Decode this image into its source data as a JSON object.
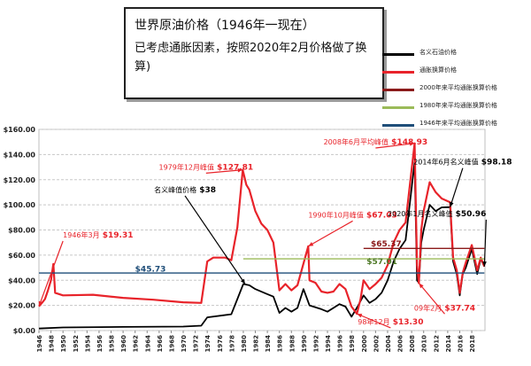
{
  "title_box": {
    "title": "世界原油价格（1946年一现在）",
    "subtitle": "已考虑通胀因素，按照2020年2月价格做了换算)"
  },
  "legend": [
    {
      "label": "名义石油价格",
      "color": "#000000"
    },
    {
      "label": "通胀换算价格",
      "color": "#e8232a"
    },
    {
      "label": "2000年来平均通胀换算价格",
      "color": "#8b1a1a"
    },
    {
      "label": "1980年来平均通胀换算价格",
      "color": "#9bbb59"
    },
    {
      "label": "1946年来平均通胀换算价格",
      "color": "#1f4e79"
    }
  ],
  "chart_data": {
    "type": "line",
    "ylim": [
      0,
      160
    ],
    "xlim": [
      1946,
      2020.2
    ],
    "y_ticks": [
      "$0.00",
      "$20.00",
      "$40.00",
      "$60.00",
      "$80.00",
      "$100.00",
      "$120.00",
      "$140.00",
      "$160.00"
    ],
    "x_ticks": [
      "1946",
      "1948",
      "1950",
      "1952",
      "1954",
      "1956",
      "1958",
      "1960",
      "1962",
      "1964",
      "1966",
      "1968",
      "1970",
      "1972",
      "1974",
      "1976",
      "1978",
      "1980",
      "1982",
      "1984",
      "1986",
      "1988",
      "1990",
      "1992",
      "1994",
      "1996",
      "1998",
      "2000",
      "2002",
      "2004",
      "2006",
      "2008",
      "2010",
      "2012",
      "2014",
      "2016",
      "2018"
    ],
    "grid": true,
    "series": [
      {
        "name": "名义石油价格",
        "color": "#000000",
        "points": [
          [
            1946,
            1.6
          ],
          [
            1950,
            2.5
          ],
          [
            1960,
            2.9
          ],
          [
            1970,
            3.2
          ],
          [
            1973,
            3.9
          ],
          [
            1974,
            10.5
          ],
          [
            1978,
            13
          ],
          [
            1979,
            25
          ],
          [
            1980,
            37
          ],
          [
            1981,
            36
          ],
          [
            1982,
            33
          ],
          [
            1984,
            29
          ],
          [
            1985,
            27
          ],
          [
            1986,
            14
          ],
          [
            1987,
            18
          ],
          [
            1988,
            15
          ],
          [
            1989,
            18
          ],
          [
            1990,
            33
          ],
          [
            1991,
            20
          ],
          [
            1993,
            17
          ],
          [
            1994,
            15
          ],
          [
            1996,
            21
          ],
          [
            1997,
            19
          ],
          [
            1998,
            11
          ],
          [
            1999,
            19
          ],
          [
            2000,
            28
          ],
          [
            2001,
            22
          ],
          [
            2002,
            25
          ],
          [
            2003,
            30
          ],
          [
            2004,
            40
          ],
          [
            2005,
            55
          ],
          [
            2006,
            65
          ],
          [
            2007,
            72
          ],
          [
            2008.5,
            134
          ],
          [
            2008.9,
            40
          ],
          [
            2009.2,
            38
          ],
          [
            2009.6,
            70
          ],
          [
            2010,
            80
          ],
          [
            2011,
            100
          ],
          [
            2012,
            95
          ],
          [
            2013,
            98
          ],
          [
            2014.4,
            98.18
          ],
          [
            2014.9,
            55
          ],
          [
            2015.5,
            45
          ],
          [
            2016,
            28
          ],
          [
            2016.5,
            45
          ],
          [
            2017,
            50
          ],
          [
            2018,
            65
          ],
          [
            2018.9,
            45
          ],
          [
            2019.5,
            57
          ],
          [
            2020.1,
            50.96
          ]
        ]
      },
      {
        "name": "通胀换算价格",
        "color": "#e8232a",
        "points": [
          [
            1946,
            19.31
          ],
          [
            1946.5,
            22
          ],
          [
            1947,
            25
          ],
          [
            1947.5,
            32
          ],
          [
            1948,
            40
          ],
          [
            1948.4,
            53
          ],
          [
            1948.7,
            30
          ],
          [
            1950,
            28
          ],
          [
            1955,
            28.5
          ],
          [
            1960,
            26
          ],
          [
            1965,
            24.5
          ],
          [
            1970,
            22.5
          ],
          [
            1973,
            22
          ],
          [
            1974,
            55
          ],
          [
            1975,
            58
          ],
          [
            1976,
            58
          ],
          [
            1977,
            58
          ],
          [
            1978,
            56
          ],
          [
            1979,
            82
          ],
          [
            1979.9,
            127.81
          ],
          [
            1980.5,
            116
          ],
          [
            1981,
            112
          ],
          [
            1982,
            95
          ],
          [
            1983,
            85
          ],
          [
            1984,
            80
          ],
          [
            1985,
            70
          ],
          [
            1986,
            32
          ],
          [
            1987,
            37
          ],
          [
            1988,
            32
          ],
          [
            1989,
            36
          ],
          [
            1990.8,
            67.03
          ],
          [
            1991,
            40
          ],
          [
            1992,
            38
          ],
          [
            1993,
            31
          ],
          [
            1994,
            30
          ],
          [
            1995,
            31
          ],
          [
            1996,
            37
          ],
          [
            1997,
            33
          ],
          [
            1998,
            19
          ],
          [
            1998.9,
            13.3
          ],
          [
            1999.5,
            25
          ],
          [
            2000,
            40
          ],
          [
            2001,
            33
          ],
          [
            2002,
            37
          ],
          [
            2003,
            42
          ],
          [
            2004,
            52
          ],
          [
            2005,
            70
          ],
          [
            2006,
            80
          ],
          [
            2007,
            86
          ],
          [
            2008.5,
            148.93
          ],
          [
            2008.9,
            52
          ],
          [
            2009.2,
            37.74
          ],
          [
            2009.6,
            80
          ],
          [
            2010,
            95
          ],
          [
            2011,
            118
          ],
          [
            2012,
            110
          ],
          [
            2013,
            105
          ],
          [
            2014.4,
            102
          ],
          [
            2014.9,
            58
          ],
          [
            2015.5,
            48
          ],
          [
            2016,
            30
          ],
          [
            2016.5,
            46
          ],
          [
            2017,
            54
          ],
          [
            2018,
            68
          ],
          [
            2018.9,
            48
          ],
          [
            2019.5,
            58
          ],
          [
            2020.1,
            50.96
          ]
        ]
      },
      {
        "name": "2000年来平均通胀换算价格",
        "color": "#8b1a1a",
        "points": [
          [
            2000,
            65.37
          ],
          [
            2020.1,
            65.37
          ]
        ]
      },
      {
        "name": "1980年来平均通胀换算价格",
        "color": "#9bbb59",
        "points": [
          [
            1980,
            57.01
          ],
          [
            2020.1,
            57.01
          ]
        ]
      },
      {
        "name": "1946年来平均通胀换算价格",
        "color": "#1f4e79",
        "points": [
          [
            1946,
            45.73
          ],
          [
            2020.1,
            45.73
          ]
        ]
      }
    ],
    "annotations": [
      {
        "text": "1946年3月",
        "value": "$19.31",
        "color": "#e8232a",
        "ax": 1946,
        "ay": 19.31,
        "tx": 1950,
        "ty": 74,
        "anchor": "start"
      },
      {
        "text": "1979年12月峰值",
        "value": "$127.81",
        "color": "#e8232a",
        "ax": 1979.9,
        "ay": 127.81,
        "tx": 1973.8,
        "ty": 128,
        "anchor": "middle"
      },
      {
        "text": "名义峰值价格",
        "value": "$38",
        "color": "#000000",
        "ax": 1980.3,
        "ay": 37,
        "tx": 1970.3,
        "ty": 110,
        "anchor": "middle"
      },
      {
        "text": "1990年10月峰值",
        "value": "$67.03",
        "color": "#e8232a",
        "ax": 1990.8,
        "ay": 67.03,
        "tx": 1998.2,
        "ty": 90,
        "anchor": "middle"
      },
      {
        "text": "2008年6月平均峰值",
        "value": "$148.93",
        "color": "#e8232a",
        "ax": 2008.5,
        "ay": 148.93,
        "tx": 2002,
        "ty": 148,
        "anchor": "middle"
      },
      {
        "text": "2014年6月名义峰值",
        "value": "$98.18",
        "color": "#000000",
        "ax": 2014.4,
        "ay": 98.18,
        "tx": 2016.5,
        "ty": 132,
        "anchor": "middle"
      },
      {
        "text": "2020年1月名义峰值",
        "value": "$50.96",
        "color": "#000000",
        "ax": 2020.1,
        "ay": 50.96,
        "tx": 2020.4,
        "ty": 91,
        "anchor": "end"
      },
      {
        "text": "09年2月",
        "value": "$37.74",
        "color": "#e8232a",
        "ax": 2009.2,
        "ay": 37.74,
        "tx": 2013.5,
        "ty": 16,
        "anchor": "middle"
      },
      {
        "text": "98年12月",
        "value": "$13.30",
        "color": "#e8232a",
        "ax": 1998.9,
        "ay": 13.3,
        "tx": 2004.5,
        "ty": 5,
        "anchor": "middle"
      }
    ],
    "line_labels": [
      {
        "text": "$45.73",
        "color": "#1f4e79",
        "x": 1962,
        "y": 47
      },
      {
        "text": "$57.01",
        "color": "#4f7a28",
        "x": 2000.5,
        "y": 53
      },
      {
        "text": "$65.37",
        "color": "#8b1a1a",
        "x": 2001.2,
        "y": 67
      }
    ]
  }
}
